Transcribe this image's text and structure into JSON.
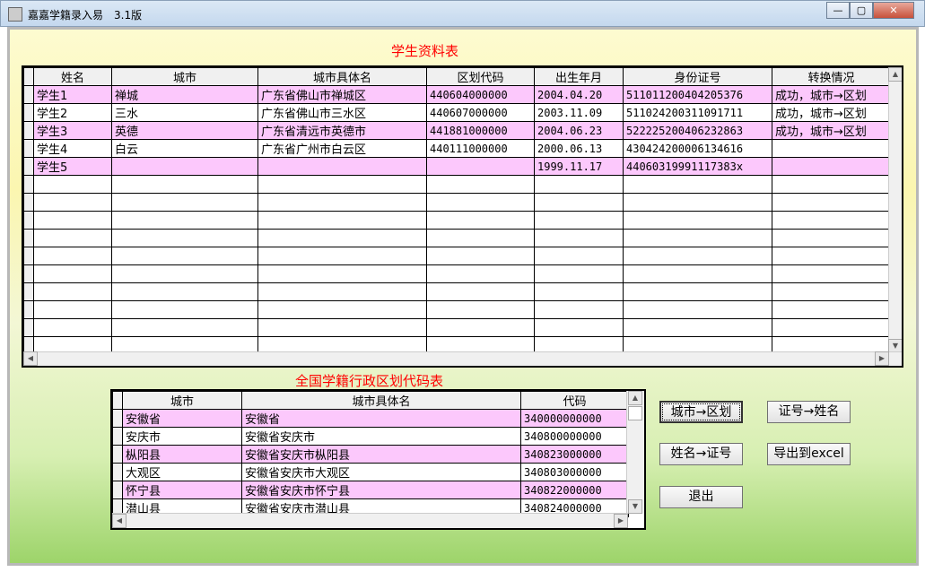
{
  "window": {
    "title": "嘉嘉学籍录入易　3.1版",
    "min": "—",
    "max": "▢",
    "close": "✕"
  },
  "student_table": {
    "caption": "学生资料表",
    "columns": [
      "姓名",
      "城市",
      "城市具体名",
      "区划代码",
      "出生年月",
      "身份证号",
      "转换情况"
    ],
    "rows": [
      [
        "学生1",
        "禅城",
        "广东省佛山市禅城区",
        "440604000000",
        "2004.04.20",
        "511011200404205376",
        "成功，城市→区划"
      ],
      [
        "学生2",
        "三水",
        "广东省佛山市三水区",
        "440607000000",
        "2003.11.09",
        "511024200311091711",
        "成功，城市→区划"
      ],
      [
        "学生3",
        "英德",
        "广东省清远市英德市",
        "441881000000",
        "2004.06.23",
        "522225200406232863",
        "成功，城市→区划"
      ],
      [
        "学生4",
        "白云",
        "广东省广州市白云区",
        "440111000000",
        "2000.06.13",
        "430424200006134616",
        ""
      ],
      [
        "学生5",
        "",
        "",
        "",
        "1999.11.17",
        "44060319991117383x",
        ""
      ]
    ]
  },
  "code_table": {
    "caption": "全国学籍行政区划代码表",
    "columns": [
      "城市",
      "城市具体名",
      "代码"
    ],
    "rows": [
      [
        "安徽省",
        "安徽省",
        "340000000000"
      ],
      [
        "安庆市",
        "安徽省安庆市",
        "340800000000"
      ],
      [
        "枞阳县",
        "安徽省安庆市枞阳县",
        "340823000000"
      ],
      [
        "大观区",
        "安徽省安庆市大观区",
        "340803000000"
      ],
      [
        "怀宁县",
        "安徽省安庆市怀宁县",
        "340822000000"
      ],
      [
        "潜山县",
        "安徽省安庆市潜山县",
        "340824000000"
      ]
    ]
  },
  "buttons": {
    "city_to_code": "城市→区划",
    "id_to_name": "证号→姓名",
    "name_to_id": "姓名→证号",
    "export": "导出到excel",
    "exit": "退出"
  }
}
